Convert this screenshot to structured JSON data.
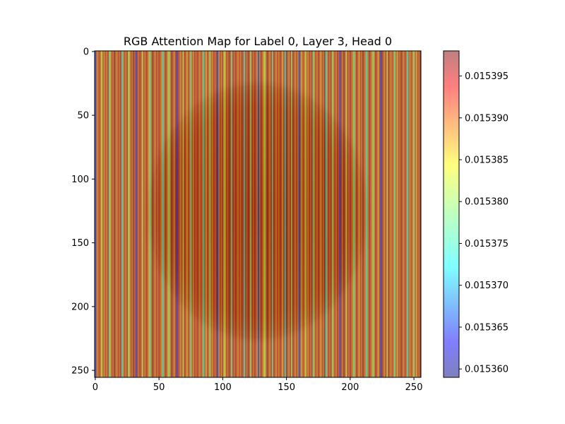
{
  "chart_data": {
    "type": "heatmap",
    "title": "RGB Attention Map for Label 0, Layer 3, Head 0",
    "xlabel": "",
    "ylabel": "",
    "xlim": [
      0,
      255
    ],
    "ylim": [
      255,
      0
    ],
    "x_ticks": [
      0,
      50,
      100,
      150,
      200,
      250
    ],
    "y_ticks": [
      0,
      50,
      100,
      150,
      200,
      250
    ],
    "x_tick_labels": [
      "0",
      "50",
      "100",
      "150",
      "200",
      "250"
    ],
    "y_tick_labels": [
      "0",
      "50",
      "100",
      "150",
      "200",
      "250"
    ],
    "colormap": "jet",
    "overlay_alpha": 0.5,
    "colorbar": {
      "location": "right",
      "vmin": 0.015359,
      "vmax": 0.015398,
      "ticks": [
        0.01536,
        0.015365,
        0.01537,
        0.015375,
        0.01538,
        0.015385,
        0.01539,
        0.015395
      ],
      "tick_labels": [
        "0.015360",
        "0.015365",
        "0.015370",
        "0.015375",
        "0.015380",
        "0.015385",
        "0.015390",
        "0.015395"
      ]
    },
    "background_image": {
      "description": "dark circular object centered in the frame",
      "center": [
        128,
        126
      ],
      "radius_x": 88,
      "radius_y": 103
    },
    "column_pattern": {
      "period_columns": 32,
      "note": "attention varies by column only; darker low-value stripes repeat every 32 columns",
      "low_stripe_columns": [
        0,
        32,
        64,
        96,
        128,
        160,
        192,
        224
      ],
      "mid_stripe_offsets": [
        5,
        11,
        21,
        26
      ],
      "mid_stripe_values": [
        0.015382,
        0.015378,
        0.015375,
        0.01538
      ],
      "low_value": 0.015365,
      "high_value": 0.015391
    }
  }
}
